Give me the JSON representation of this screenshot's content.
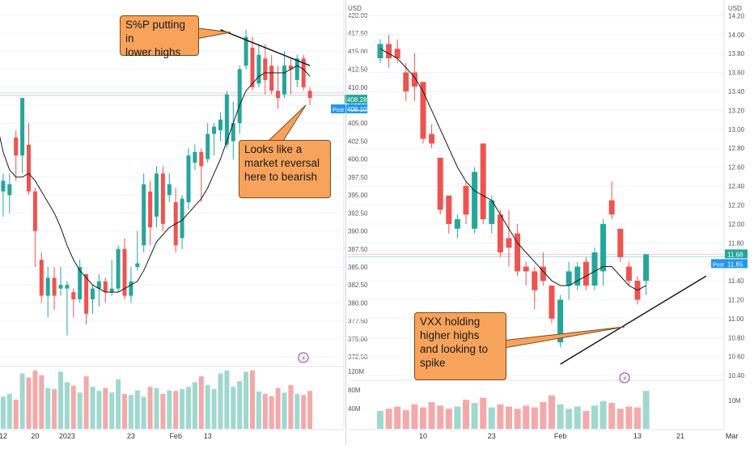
{
  "chart_data": [
    {
      "type": "candlestick",
      "title": "",
      "currency": "USD",
      "y_ticks": [
        "420.00",
        "417.50",
        "415.00",
        "412.50",
        "410.00",
        "407.50",
        "405.00",
        "402.50",
        "400.00",
        "397.50",
        "395.00",
        "392.50",
        "390.00",
        "387.50",
        "385.00",
        "382.50",
        "380.00",
        "377.50",
        "375.00",
        "372.50"
      ],
      "ylim": [
        371.5,
        421
      ],
      "x_ticks": [
        {
          "label": "12",
          "i": 1
        },
        {
          "label": "20",
          "i": 6
        },
        {
          "label": "2023",
          "i": 11
        },
        {
          "label": "23",
          "i": 21
        },
        {
          "label": "Feb",
          "i": 28
        },
        {
          "label": "13",
          "i": 33
        }
      ],
      "price_labels": {
        "last": "408.28",
        "post": "408.10",
        "post_tag": "Post"
      },
      "volume_ticks": [
        "120M",
        "80M",
        "40M"
      ],
      "candles": [
        {
          "o": 397,
          "h": 398,
          "l": 393,
          "c": 395.5
        },
        {
          "o": 395.5,
          "h": 398,
          "l": 392,
          "c": 397
        },
        {
          "o": 395,
          "h": 398,
          "l": 392.5,
          "c": 396.5
        },
        {
          "o": 403,
          "h": 404,
          "l": 397,
          "c": 400.5
        },
        {
          "o": 400.5,
          "h": 408.5,
          "l": 398,
          "c": 408.5
        },
        {
          "o": 402,
          "h": 405,
          "l": 395,
          "c": 395.5
        },
        {
          "o": 395.5,
          "h": 396,
          "l": 385,
          "c": 390
        },
        {
          "o": 386,
          "h": 387,
          "l": 380,
          "c": 381
        },
        {
          "o": 381,
          "h": 385,
          "l": 378,
          "c": 383.5
        },
        {
          "o": 383.5,
          "h": 385,
          "l": 379,
          "c": 381
        },
        {
          "o": 382,
          "h": 385,
          "l": 381,
          "c": 382.5
        },
        {
          "o": 382,
          "h": 383,
          "l": 375.5,
          "c": 382.5
        },
        {
          "o": 381.5,
          "h": 382,
          "l": 378,
          "c": 380.5
        },
        {
          "o": 380.5,
          "h": 386,
          "l": 380,
          "c": 385
        },
        {
          "o": 384,
          "h": 384,
          "l": 377,
          "c": 378.5
        },
        {
          "o": 380.5,
          "h": 382.5,
          "l": 378.5,
          "c": 382
        },
        {
          "o": 382,
          "h": 384,
          "l": 379.5,
          "c": 383
        },
        {
          "o": 383,
          "h": 383.5,
          "l": 380,
          "c": 381.5
        },
        {
          "o": 381.5,
          "h": 386,
          "l": 381,
          "c": 382
        },
        {
          "o": 382,
          "h": 388,
          "l": 381.5,
          "c": 387.5
        },
        {
          "o": 387.5,
          "h": 389,
          "l": 380.5,
          "c": 381
        },
        {
          "o": 381,
          "h": 385,
          "l": 380,
          "c": 383
        },
        {
          "o": 385,
          "h": 390,
          "l": 384.5,
          "c": 385.5
        },
        {
          "o": 388,
          "h": 398,
          "l": 387,
          "c": 396.5
        },
        {
          "o": 395.5,
          "h": 397,
          "l": 388,
          "c": 390.5
        },
        {
          "o": 392,
          "h": 399,
          "l": 390.5,
          "c": 398
        },
        {
          "o": 398,
          "h": 399,
          "l": 390,
          "c": 391
        },
        {
          "o": 395,
          "h": 398,
          "l": 394,
          "c": 396.5
        },
        {
          "o": 394,
          "h": 396,
          "l": 387,
          "c": 388
        },
        {
          "o": 389,
          "h": 395,
          "l": 387.5,
          "c": 394.5
        },
        {
          "o": 394,
          "h": 401.5,
          "l": 393,
          "c": 400.5
        },
        {
          "o": 399.5,
          "h": 402,
          "l": 398.5,
          "c": 401
        },
        {
          "o": 401,
          "h": 401.5,
          "l": 394,
          "c": 399
        },
        {
          "o": 400,
          "h": 405,
          "l": 399.5,
          "c": 403.5
        },
        {
          "o": 403.5,
          "h": 405,
          "l": 400.5,
          "c": 404.5
        },
        {
          "o": 404,
          "h": 406.5,
          "l": 402.5,
          "c": 405.5
        },
        {
          "o": 402,
          "h": 409.5,
          "l": 401.5,
          "c": 409
        },
        {
          "o": 402.5,
          "h": 408,
          "l": 400,
          "c": 405
        },
        {
          "o": 405,
          "h": 413,
          "l": 403.5,
          "c": 412.5
        },
        {
          "o": 413,
          "h": 418,
          "l": 412.5,
          "c": 417
        },
        {
          "o": 415.5,
          "h": 417,
          "l": 409.5,
          "c": 410
        },
        {
          "o": 410.5,
          "h": 416,
          "l": 410,
          "c": 414.5
        },
        {
          "o": 414,
          "h": 416,
          "l": 409,
          "c": 411
        },
        {
          "o": 413,
          "h": 414.5,
          "l": 409,
          "c": 409.5
        },
        {
          "o": 409.5,
          "h": 413,
          "l": 407,
          "c": 408.5
        },
        {
          "o": 409,
          "h": 415,
          "l": 408.5,
          "c": 413
        },
        {
          "o": 413,
          "h": 414,
          "l": 409,
          "c": 412.5
        },
        {
          "o": 411,
          "h": 414.5,
          "l": 410,
          "c": 414
        },
        {
          "o": 414,
          "h": 414.5,
          "l": 409.5,
          "c": 410
        },
        {
          "o": 409.5,
          "h": 410,
          "l": 407.5,
          "c": 408.5
        }
      ],
      "ma": [
        405,
        401,
        398.5,
        397.5,
        397.5,
        398,
        397,
        395.5,
        394,
        392.5,
        390.5,
        388,
        386,
        384.5,
        383.5,
        382.5,
        382,
        381.5,
        381.5,
        381.5,
        382,
        382.5,
        383,
        384.5,
        386.5,
        388.5,
        389.5,
        390.5,
        391,
        391.5,
        392.5,
        393.5,
        394.5,
        396,
        398,
        400,
        402.5,
        405,
        407.5,
        409.5,
        410.5,
        411.5,
        412,
        412,
        412,
        412,
        412.5,
        413,
        412.5,
        411.5
      ],
      "volumes": [
        75,
        55,
        60,
        50,
        95,
        88,
        100,
        92,
        70,
        68,
        98,
        80,
        74,
        62,
        90,
        72,
        65,
        70,
        62,
        85,
        60,
        58,
        66,
        55,
        72,
        70,
        60,
        66,
        65,
        68,
        72,
        80,
        90,
        75,
        68,
        95,
        100,
        72,
        82,
        98,
        100,
        64,
        60,
        56,
        70,
        62,
        75,
        60,
        58,
        65
      ],
      "trendline_points": [
        [
          35,
          418
        ],
        [
          49,
          413
        ]
      ],
      "horizontal_line": 409.2
    },
    {
      "type": "candlestick",
      "title": "",
      "currency": "USD",
      "y_ticks": [
        "14.20",
        "14.00",
        "13.80",
        "13.60",
        "13.40",
        "13.20",
        "13.00",
        "12.80",
        "12.60",
        "12.40",
        "12.20",
        "12.00",
        "11.80",
        "11.60",
        "11.40",
        "11.20",
        "11.00",
        "10.80",
        "10.60",
        "10.40"
      ],
      "ylim": [
        10.35,
        14.28
      ],
      "x_ticks": [
        {
          "label": "10",
          "i": 5
        },
        {
          "label": "23",
          "i": 13
        },
        {
          "label": "Feb",
          "i": 21
        },
        {
          "label": "13",
          "i": 30
        },
        {
          "label": "21",
          "i": 35
        },
        {
          "label": "Mar",
          "i": 41
        }
      ],
      "price_labels": {
        "last": "11.68",
        "post": "11.65",
        "post_tag": "Post"
      },
      "volume_ticks": [
        "10M"
      ],
      "candles": [
        {
          "o": 13.75,
          "h": 13.95,
          "l": 13.7,
          "c": 13.9
        },
        {
          "o": 13.9,
          "h": 14.0,
          "l": 13.65,
          "c": 13.75
        },
        {
          "o": 13.85,
          "h": 13.95,
          "l": 13.7,
          "c": 13.75
        },
        {
          "o": 13.6,
          "h": 13.7,
          "l": 13.3,
          "c": 13.4
        },
        {
          "o": 13.6,
          "h": 13.8,
          "l": 13.3,
          "c": 13.45
        },
        {
          "o": 13.5,
          "h": 13.5,
          "l": 12.85,
          "c": 12.9
        },
        {
          "o": 12.95,
          "h": 13.05,
          "l": 12.8,
          "c": 12.85
        },
        {
          "o": 12.7,
          "h": 12.7,
          "l": 12.1,
          "c": 12.15
        },
        {
          "o": 12.3,
          "h": 12.3,
          "l": 11.9,
          "c": 12.0
        },
        {
          "o": 11.95,
          "h": 12.1,
          "l": 11.85,
          "c": 12.05
        },
        {
          "o": 12.4,
          "h": 12.45,
          "l": 12.0,
          "c": 12.1
        },
        {
          "o": 11.95,
          "h": 12.6,
          "l": 11.9,
          "c": 12.55
        },
        {
          "o": 12.85,
          "h": 12.85,
          "l": 12.0,
          "c": 12.05
        },
        {
          "o": 12.0,
          "h": 12.3,
          "l": 11.9,
          "c": 12.25
        },
        {
          "o": 12.1,
          "h": 12.15,
          "l": 11.65,
          "c": 11.7
        },
        {
          "o": 11.85,
          "h": 12.15,
          "l": 11.55,
          "c": 11.75
        },
        {
          "o": 11.9,
          "h": 12.0,
          "l": 11.45,
          "c": 11.5
        },
        {
          "o": 11.55,
          "h": 11.6,
          "l": 11.35,
          "c": 11.5
        },
        {
          "o": 11.5,
          "h": 11.55,
          "l": 11.1,
          "c": 11.3
        },
        {
          "o": 11.55,
          "h": 11.7,
          "l": 11.35,
          "c": 11.4
        },
        {
          "o": 11.35,
          "h": 11.35,
          "l": 10.95,
          "c": 11.0
        },
        {
          "o": 10.75,
          "h": 11.25,
          "l": 10.7,
          "c": 11.2
        },
        {
          "o": 11.35,
          "h": 11.6,
          "l": 11.2,
          "c": 11.5
        },
        {
          "o": 11.35,
          "h": 11.6,
          "l": 11.3,
          "c": 11.55
        },
        {
          "o": 11.6,
          "h": 11.65,
          "l": 11.3,
          "c": 11.35
        },
        {
          "o": 11.35,
          "h": 11.75,
          "l": 11.3,
          "c": 11.7
        },
        {
          "o": 11.5,
          "h": 12.05,
          "l": 11.35,
          "c": 12.0
        },
        {
          "o": 12.25,
          "h": 12.45,
          "l": 12.05,
          "c": 12.1
        },
        {
          "o": 11.95,
          "h": 11.95,
          "l": 11.6,
          "c": 11.65
        },
        {
          "o": 11.55,
          "h": 11.6,
          "l": 11.35,
          "c": 11.4
        },
        {
          "o": 11.4,
          "h": 11.45,
          "l": 11.15,
          "c": 11.2
        },
        {
          "o": 11.4,
          "h": 11.68,
          "l": 11.25,
          "c": 11.68
        }
      ],
      "ma": [
        13.85,
        13.8,
        13.75,
        13.65,
        13.55,
        13.4,
        13.2,
        13.0,
        12.8,
        12.6,
        12.45,
        12.35,
        12.3,
        12.25,
        12.1,
        11.95,
        11.8,
        11.7,
        11.6,
        11.5,
        11.4,
        11.35,
        11.35,
        11.4,
        11.45,
        11.5,
        11.55,
        11.55,
        11.45,
        11.35,
        11.3,
        11.35
      ],
      "volumes": [
        40,
        45,
        50,
        42,
        55,
        48,
        60,
        52,
        45,
        50,
        65,
        58,
        70,
        48,
        55,
        50,
        45,
        52,
        48,
        60,
        75,
        55,
        45,
        50,
        40,
        52,
        62,
        58,
        45,
        50,
        48,
        85
      ],
      "trendline_points": [
        [
          21,
          10.52
        ],
        [
          38,
          11.45
        ]
      ],
      "horizontal_line": 11.68
    }
  ],
  "annotations": {
    "sp": "S%P putting in\nlower highs",
    "reversal": "Looks like a\nmarket reversal\nhere to bearish",
    "vxx": "VXX holding\nhigher highs\nand looking to\nspike"
  }
}
